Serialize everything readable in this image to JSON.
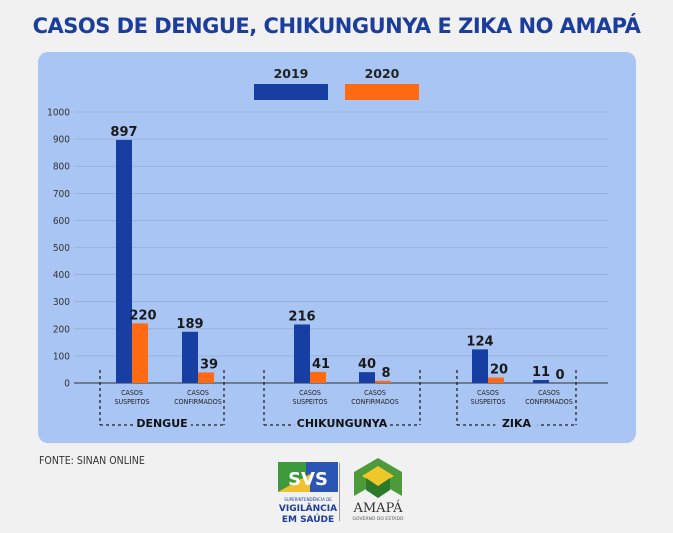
{
  "title": "CASOS DE DENGUE, CHIKUNGUNYA E ZIKA NO AMAPÁ",
  "source": "FONTE: SINAN ONLINE",
  "logos": {
    "svs": {
      "mark": "SVS",
      "line1": "SUPERINTENDÊNCIA DE",
      "line2": "VIGILÂNCIA",
      "line3": "EM SAÚDE"
    },
    "amapa": {
      "name": "AMAPÁ",
      "line1": "GOVERNO DO ESTADO"
    }
  },
  "colors": {
    "title": "#1b3d9c",
    "series_2019": "#163ea3",
    "series_2020": "#ff6a13",
    "panel": "#a9c5f3"
  },
  "chart_data": {
    "type": "bar",
    "ylim": [
      0,
      1000
    ],
    "yticks": [
      0,
      100,
      200,
      300,
      400,
      500,
      600,
      700,
      800,
      900,
      1000
    ],
    "grid": true,
    "legend": "top-center",
    "groups": [
      {
        "name": "DENGUE",
        "categories": [
          "CASOS SUSPEITOS",
          "CASOS CONFIRMADOS"
        ]
      },
      {
        "name": "CHIKUNGUNYA",
        "categories": [
          "CASOS SUSPEITOS",
          "CASOS CONFIRMADOS"
        ]
      },
      {
        "name": "ZIKA",
        "categories": [
          "CASOS SUSPEITOS",
          "CASOS CONFIRMADOS"
        ]
      }
    ],
    "series": [
      {
        "name": "2019",
        "values": [
          897,
          189,
          216,
          40,
          124,
          11
        ]
      },
      {
        "name": "2020",
        "values": [
          220,
          39,
          41,
          8,
          20,
          0
        ]
      }
    ]
  }
}
